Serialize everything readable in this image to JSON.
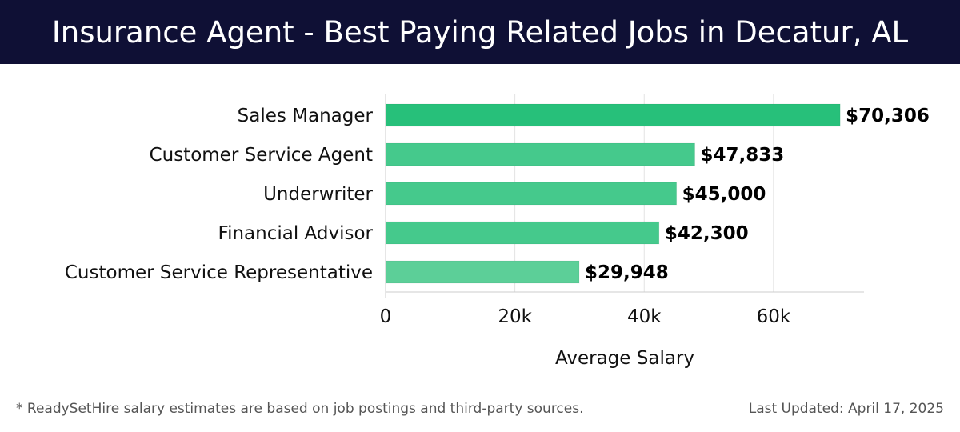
{
  "header": {
    "title": "Insurance Agent - Best Paying Related Jobs in Decatur, AL"
  },
  "footer": {
    "note": "* ReadySetHire salary estimates are based on job postings and third-party sources.",
    "updated": "Last Updated: April 17, 2025"
  },
  "colors": {
    "header_bg": "#0f1035",
    "bar_top": "#27c07a",
    "bar": "#45c98c",
    "bar_light": "#5ccf98",
    "grid": "#e2e2e2",
    "axis": "#cccccc",
    "label": "#111111",
    "value_label": "#000000"
  },
  "chart_data": {
    "type": "bar",
    "orientation": "horizontal",
    "title": "Insurance Agent - Best Paying Related Jobs in Decatur, AL",
    "xlabel": "Average Salary",
    "ylabel": "",
    "categories": [
      "Sales Manager",
      "Customer Service Agent",
      "Underwriter",
      "Financial Advisor",
      "Customer Service Representative"
    ],
    "values": [
      70306,
      47833,
      45000,
      42300,
      29948
    ],
    "value_labels": [
      "$70,306",
      "$47,833",
      "$45,000",
      "$42,300",
      "$29,948"
    ],
    "xlim": [
      0,
      74000
    ],
    "xticks": [
      0,
      20000,
      40000,
      60000
    ],
    "xtick_labels": [
      "0",
      "20k",
      "40k",
      "60k"
    ],
    "grid": "vertical",
    "legend": "none"
  }
}
